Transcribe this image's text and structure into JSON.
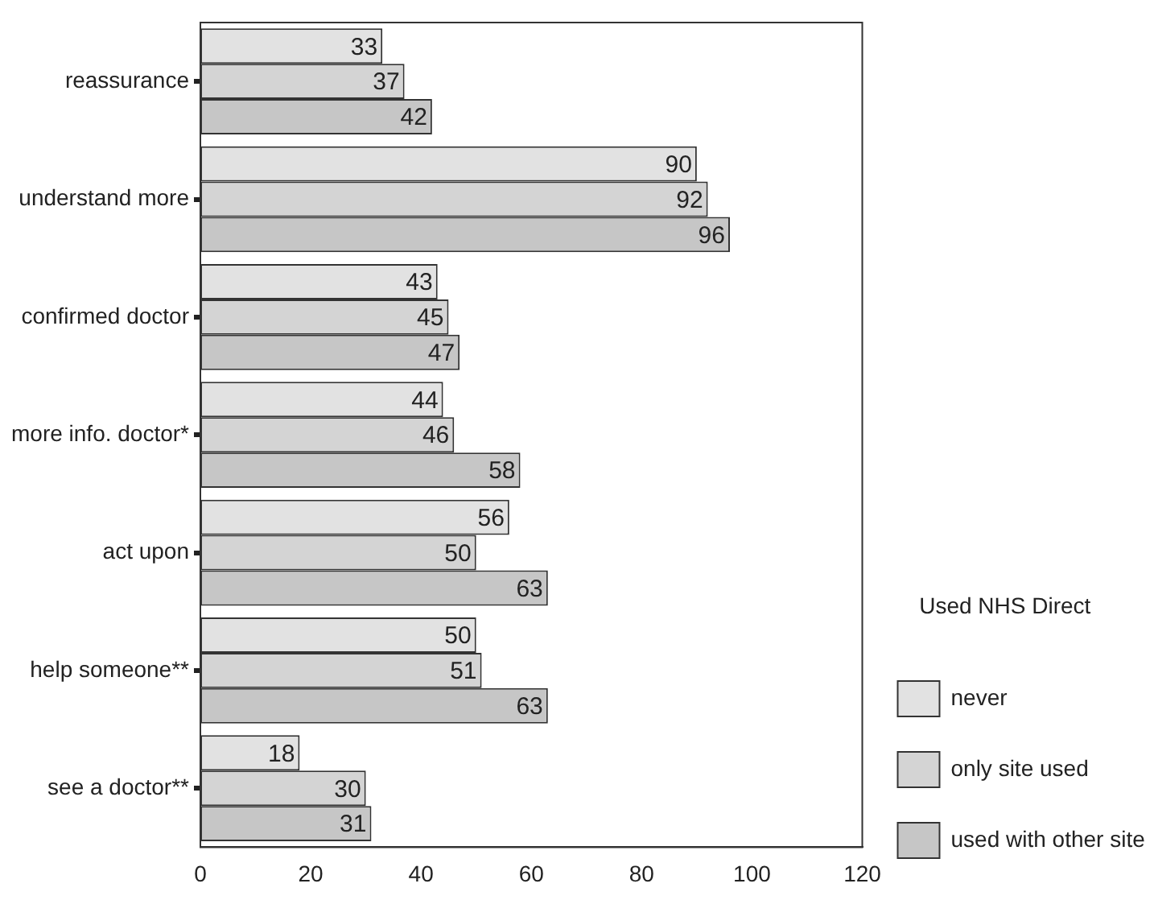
{
  "chart_data": {
    "type": "bar",
    "orientation": "horizontal",
    "legend_title": "Used NHS Direct",
    "legend": "right",
    "categories": [
      "reassurance",
      "understand more",
      "confirmed doctor",
      "more info. doctor*",
      "act upon",
      "help someone**",
      "see a doctor**"
    ],
    "series": [
      {
        "name": "never",
        "color": "#e2e2e2",
        "values": [
          33,
          90,
          43,
          44,
          56,
          50,
          18
        ]
      },
      {
        "name": "only site used",
        "color": "#d4d4d4",
        "values": [
          37,
          92,
          45,
          46,
          50,
          51,
          30
        ]
      },
      {
        "name": "used with other site",
        "color": "#c6c6c6",
        "values": [
          42,
          96,
          47,
          58,
          63,
          63,
          31
        ]
      }
    ],
    "xlim": [
      0,
      120
    ],
    "xticks": [
      0,
      20,
      40,
      60,
      80,
      100,
      120
    ],
    "grid": false,
    "data_labels": true
  }
}
